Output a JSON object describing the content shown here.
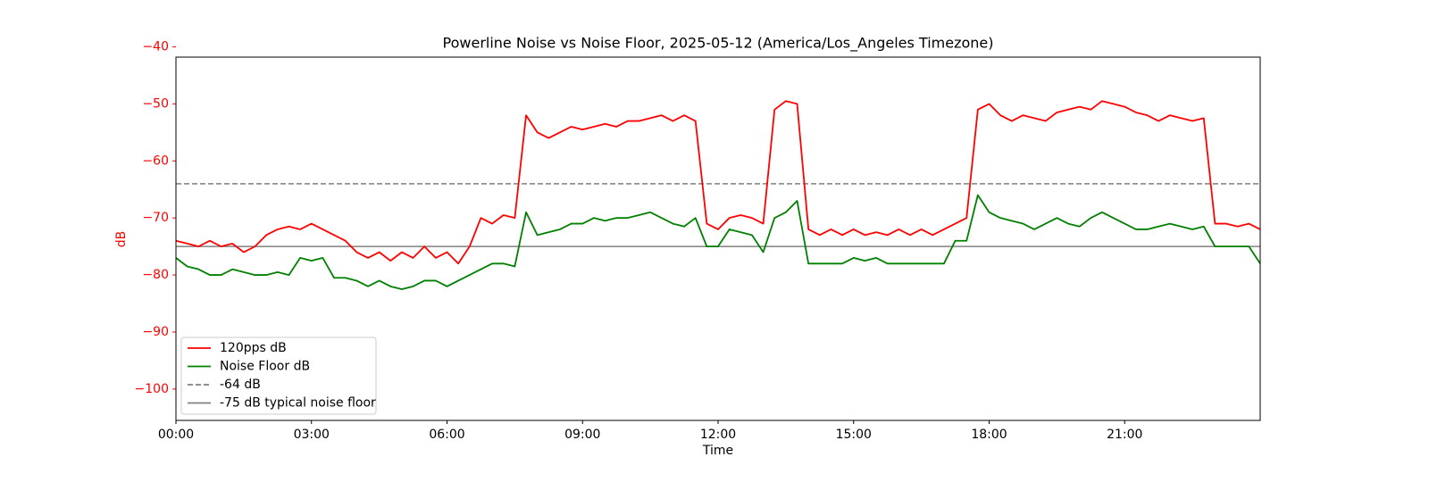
{
  "chart_data": {
    "type": "line",
    "title": "Powerline Noise vs Noise Floor, 2025-05-12 (America/Los_Angeles Timezone)",
    "xlabel": "Time",
    "ylabel": "dB",
    "ylabel_color": "red",
    "x": [
      0,
      0.25,
      0.5,
      0.75,
      1,
      1.25,
      1.5,
      1.75,
      2,
      2.25,
      2.5,
      2.75,
      3,
      3.25,
      3.5,
      3.75,
      4,
      4.25,
      4.5,
      4.75,
      5,
      5.25,
      5.5,
      5.75,
      6,
      6.25,
      6.5,
      6.75,
      7,
      7.25,
      7.5,
      7.75,
      8,
      8.25,
      8.5,
      8.75,
      9,
      9.25,
      9.5,
      9.75,
      10,
      10.25,
      10.5,
      10.75,
      11,
      11.25,
      11.5,
      11.75,
      12,
      12.25,
      12.5,
      12.75,
      13,
      13.25,
      13.5,
      13.75,
      14,
      14.25,
      14.5,
      14.75,
      15,
      15.25,
      15.5,
      15.75,
      16,
      16.25,
      16.5,
      16.75,
      17,
      17.25,
      17.5,
      17.75,
      18,
      18.25,
      18.5,
      18.75,
      19,
      19.25,
      19.5,
      19.75,
      20,
      20.25,
      20.5,
      20.75,
      21,
      21.25,
      21.5,
      21.75,
      22,
      22.25,
      22.5,
      22.75,
      23,
      23.25,
      23.5,
      23.75,
      24
    ],
    "series": [
      {
        "name": "120pps dB",
        "color": "#ff0000",
        "values": [
          -74,
          -74.5,
          -75,
          -74,
          -75,
          -74.5,
          -76,
          -75,
          -73,
          -72,
          -71.5,
          -72,
          -71,
          -72,
          -73,
          -74,
          -76,
          -77,
          -76,
          -77.5,
          -76,
          -77,
          -75,
          -77,
          -76,
          -78,
          -75,
          -70,
          -71,
          -69.5,
          -70,
          -52,
          -55,
          -56,
          -55,
          -54,
          -54.5,
          -54,
          -53.5,
          -54,
          -53,
          -53,
          -52.5,
          -52,
          -53,
          -52,
          -53,
          -71,
          -72,
          -70,
          -69.5,
          -70,
          -71,
          -51,
          -49.5,
          -50,
          -72,
          -73,
          -72,
          -73,
          -72,
          -73,
          -72.5,
          -73,
          -72,
          -73,
          -72,
          -73,
          -72,
          -71,
          -70,
          -51,
          -50,
          -52,
          -53,
          -52,
          -52.5,
          -53,
          -51.5,
          -51,
          -50.5,
          -51,
          -49.5,
          -50,
          -50.5,
          -51.5,
          -52,
          -53,
          -52,
          -52.5,
          -53,
          -52.5,
          -71,
          -71,
          -71.5,
          -71,
          -72
        ]
      },
      {
        "name": "Noise Floor dB",
        "color": "#008000",
        "values": [
          -77,
          -78.5,
          -79,
          -80,
          -80,
          -79,
          -79.5,
          -80,
          -80,
          -79.5,
          -80,
          -77,
          -77.5,
          -77,
          -80.5,
          -80.5,
          -81,
          -82,
          -81,
          -82,
          -82.5,
          -82,
          -81,
          -81,
          -82,
          -81,
          -80,
          -79,
          -78,
          -78,
          -78.5,
          -69,
          -73,
          -72.5,
          -72,
          -71,
          -71,
          -70,
          -70.5,
          -70,
          -70,
          -69.5,
          -69,
          -70,
          -71,
          -71.5,
          -70,
          -75,
          -75,
          -72,
          -72.5,
          -73,
          -76,
          -70,
          -69,
          -67,
          -78,
          -78,
          -78,
          -78,
          -77,
          -77.5,
          -77,
          -78,
          -78,
          -78,
          -78,
          -78,
          -78,
          -74,
          -74,
          -66,
          -69,
          -70,
          -70.5,
          -71,
          -72,
          -71,
          -70,
          -71,
          -71.5,
          -70,
          -69,
          -70,
          -71,
          -72,
          -72,
          -71.5,
          -71,
          -71.5,
          -72,
          -71.5,
          -75,
          -75,
          -75,
          -75,
          -78
        ]
      }
    ],
    "hlines": [
      {
        "name": "-64 dB",
        "value": -64,
        "color": "#808080",
        "style": "dashed"
      },
      {
        "name": "-75 dB typical noise floor",
        "value": -75,
        "color": "#808080",
        "style": "solid"
      }
    ],
    "xlim": [
      0,
      24
    ],
    "xticks": [
      {
        "value": 0,
        "label": "00:00"
      },
      {
        "value": 3,
        "label": "03:00"
      },
      {
        "value": 6,
        "label": "06:00"
      },
      {
        "value": 9,
        "label": "09:00"
      },
      {
        "value": 12,
        "label": "12:00"
      },
      {
        "value": 15,
        "label": "15:00"
      },
      {
        "value": 18,
        "label": "18:00"
      },
      {
        "value": 21,
        "label": "21:00"
      }
    ],
    "ylim": [
      -105.5,
      -41.8
    ],
    "yticks": [
      {
        "value": -100,
        "label": "−100"
      },
      {
        "value": -90,
        "label": "−90"
      },
      {
        "value": -80,
        "label": "−80"
      },
      {
        "value": -70,
        "label": "−70"
      },
      {
        "value": -60,
        "label": "−60"
      },
      {
        "value": -50,
        "label": "−50"
      },
      {
        "value": -40,
        "label": "−40"
      }
    ],
    "legend": "lower left"
  }
}
